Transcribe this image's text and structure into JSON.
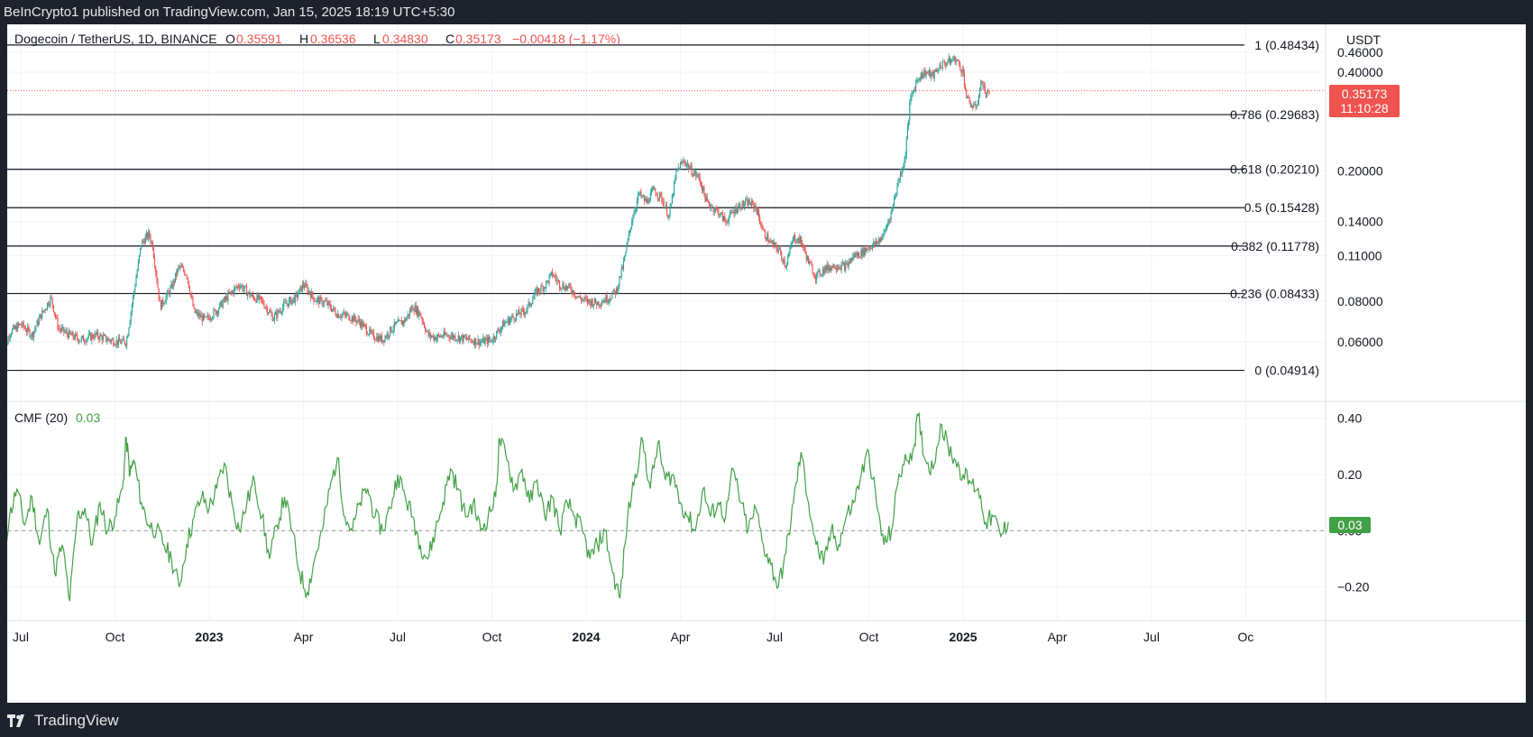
{
  "header": {
    "publish_line": "BeInCrypto1 published on TradingView.com, Jan 15, 2025 18:19 UTC+5:30"
  },
  "footer": {
    "brand": "TradingView"
  },
  "legend": {
    "symbol": "Dogecoin / TetherUS, 1D, BINANCE",
    "o_label": "O",
    "o_value": "0.35591",
    "h_label": "H",
    "h_value": "0.36536",
    "l_label": "L",
    "l_value": "0.34830",
    "c_label": "C",
    "c_value": "0.35173",
    "change": "−0.00418 (−1.17%)"
  },
  "currency": "USDT",
  "price_badge": {
    "price": "0.35173",
    "countdown": "11:10:28"
  },
  "cmf_legend": {
    "label": "CMF (20)",
    "value": "0.03"
  },
  "cmf_badge": "0.03",
  "colors": {
    "up": "#26a69a",
    "down": "#ef5350",
    "cmf": "#43a047",
    "price_line": "#ef5350",
    "frame": "#1e222d"
  },
  "chart_data": [
    {
      "type": "candlestick",
      "title": "Dogecoin / TetherUS, 1D, BINANCE",
      "scale": "log",
      "ylim": [
        0.0395,
        0.56
      ],
      "y_ticks": [
        {
          "v": 0.46,
          "label": "0.46000"
        },
        {
          "v": 0.06,
          "label": "0.06000"
        },
        {
          "v": 0.08,
          "label": "0.08000"
        },
        {
          "v": 0.11,
          "label": "0.11000"
        },
        {
          "v": 0.14,
          "label": "0.14000"
        },
        {
          "v": 0.2,
          "label": "0.20000"
        },
        {
          "v": 0.4,
          "label": "0.40000"
        }
      ],
      "x_ticks": [
        {
          "t": 2022.5,
          "label": "Jul"
        },
        {
          "t": 2022.75,
          "label": "Oct"
        },
        {
          "t": 2023.0,
          "label": "2023"
        },
        {
          "t": 2023.25,
          "label": "Apr"
        },
        {
          "t": 2023.5,
          "label": "Jul"
        },
        {
          "t": 2023.75,
          "label": "Oct"
        },
        {
          "t": 2024.0,
          "label": "2024"
        },
        {
          "t": 2024.25,
          "label": "Apr"
        },
        {
          "t": 2024.5,
          "label": "Jul"
        },
        {
          "t": 2024.75,
          "label": "Oct"
        },
        {
          "t": 2025.0,
          "label": "2025"
        },
        {
          "t": 2025.25,
          "label": "Apr"
        },
        {
          "t": 2025.5,
          "label": "Jul"
        },
        {
          "t": 2025.75,
          "label": "Oc"
        }
      ],
      "fib_levels": [
        {
          "v": 0.48434,
          "label": "1 (0.48434)"
        },
        {
          "v": 0.29683,
          "label": "0.786 (0.29683)"
        },
        {
          "v": 0.2021,
          "label": "0.618 (0.20210)"
        },
        {
          "v": 0.15428,
          "label": "0.5 (0.15428)"
        },
        {
          "v": 0.11778,
          "label": "0.382 (0.11778)"
        },
        {
          "v": 0.08433,
          "label": "0.236 (0.08433)"
        },
        {
          "v": 0.04914,
          "label": "0 (0.04914)"
        }
      ],
      "last_price": 0.35173,
      "price_path": [
        [
          2022.45,
          0.052
        ],
        [
          2022.47,
          0.064
        ],
        [
          2022.5,
          0.068
        ],
        [
          2022.53,
          0.063
        ],
        [
          2022.55,
          0.071
        ],
        [
          2022.58,
          0.082
        ],
        [
          2022.6,
          0.066
        ],
        [
          2022.63,
          0.063
        ],
        [
          2022.66,
          0.061
        ],
        [
          2022.7,
          0.063
        ],
        [
          2022.73,
          0.061
        ],
        [
          2022.76,
          0.06
        ],
        [
          2022.78,
          0.06
        ],
        [
          2022.8,
          0.085
        ],
        [
          2022.82,
          0.12
        ],
        [
          2022.84,
          0.128
        ],
        [
          2022.85,
          0.118
        ],
        [
          2022.87,
          0.077
        ],
        [
          2022.9,
          0.088
        ],
        [
          2022.92,
          0.102
        ],
        [
          2022.94,
          0.097
        ],
        [
          2022.96,
          0.074
        ],
        [
          2022.99,
          0.07
        ],
        [
          2023.02,
          0.075
        ],
        [
          2023.05,
          0.083
        ],
        [
          2023.08,
          0.09
        ],
        [
          2023.11,
          0.083
        ],
        [
          2023.14,
          0.08
        ],
        [
          2023.17,
          0.071
        ],
        [
          2023.2,
          0.078
        ],
        [
          2023.23,
          0.082
        ],
        [
          2023.25,
          0.09
        ],
        [
          2023.28,
          0.081
        ],
        [
          2023.31,
          0.079
        ],
        [
          2023.34,
          0.073
        ],
        [
          2023.37,
          0.072
        ],
        [
          2023.4,
          0.069
        ],
        [
          2023.43,
          0.063
        ],
        [
          2023.46,
          0.061
        ],
        [
          2023.49,
          0.067
        ],
        [
          2023.52,
          0.07
        ],
        [
          2023.54,
          0.077
        ],
        [
          2023.56,
          0.073
        ],
        [
          2023.58,
          0.063
        ],
        [
          2023.6,
          0.062
        ],
        [
          2023.63,
          0.063
        ],
        [
          2023.66,
          0.062
        ],
        [
          2023.69,
          0.061
        ],
        [
          2023.72,
          0.06
        ],
        [
          2023.75,
          0.061
        ],
        [
          2023.78,
          0.068
        ],
        [
          2023.81,
          0.072
        ],
        [
          2023.84,
          0.075
        ],
        [
          2023.87,
          0.086
        ],
        [
          2023.89,
          0.089
        ],
        [
          2023.91,
          0.097
        ],
        [
          2023.93,
          0.09
        ],
        [
          2023.96,
          0.087
        ],
        [
          2023.98,
          0.082
        ],
        [
          2024.0,
          0.08
        ],
        [
          2024.03,
          0.079
        ],
        [
          2024.06,
          0.082
        ],
        [
          2024.08,
          0.086
        ],
        [
          2024.1,
          0.105
        ],
        [
          2024.12,
          0.14
        ],
        [
          2024.14,
          0.17
        ],
        [
          2024.16,
          0.16
        ],
        [
          2024.18,
          0.175
        ],
        [
          2024.2,
          0.165
        ],
        [
          2024.22,
          0.145
        ],
        [
          2024.24,
          0.2
        ],
        [
          2024.26,
          0.215
        ],
        [
          2024.28,
          0.2
        ],
        [
          2024.3,
          0.19
        ],
        [
          2024.32,
          0.16
        ],
        [
          2024.35,
          0.15
        ],
        [
          2024.37,
          0.14
        ],
        [
          2024.4,
          0.155
        ],
        [
          2024.43,
          0.16
        ],
        [
          2024.45,
          0.155
        ],
        [
          2024.47,
          0.13
        ],
        [
          2024.49,
          0.12
        ],
        [
          2024.51,
          0.115
        ],
        [
          2024.53,
          0.103
        ],
        [
          2024.55,
          0.125
        ],
        [
          2024.57,
          0.122
        ],
        [
          2024.59,
          0.105
        ],
        [
          2024.61,
          0.095
        ],
        [
          2024.63,
          0.1
        ],
        [
          2024.66,
          0.103
        ],
        [
          2024.69,
          0.102
        ],
        [
          2024.71,
          0.11
        ],
        [
          2024.73,
          0.112
        ],
        [
          2024.75,
          0.117
        ],
        [
          2024.77,
          0.12
        ],
        [
          2024.79,
          0.128
        ],
        [
          2024.81,
          0.15
        ],
        [
          2024.83,
          0.19
        ],
        [
          2024.845,
          0.215
        ],
        [
          2024.86,
          0.33
        ],
        [
          2024.88,
          0.385
        ],
        [
          2024.9,
          0.4
        ],
        [
          2024.92,
          0.39
        ],
        [
          2024.94,
          0.42
        ],
        [
          2024.96,
          0.43
        ],
        [
          2024.98,
          0.44
        ],
        [
          2025.0,
          0.4
        ],
        [
          2025.01,
          0.33
        ],
        [
          2025.02,
          0.32
        ],
        [
          2025.03,
          0.31
        ],
        [
          2025.04,
          0.33
        ],
        [
          2025.05,
          0.38
        ],
        [
          2025.06,
          0.34
        ],
        [
          2025.07,
          0.35173
        ]
      ]
    },
    {
      "type": "line",
      "title": "CMF (20)",
      "ylim": [
        -0.32,
        0.46
      ],
      "y_ticks": [
        {
          "v": 0.4,
          "label": "0.40"
        },
        {
          "v": 0.2,
          "label": "0.20"
        },
        {
          "v": 0.0,
          "label": "0.00"
        },
        {
          "v": -0.2,
          "label": "−0.20"
        }
      ],
      "zero_line": 0.0,
      "series": [
        {
          "values": [
            [
              2022.45,
              -0.12
            ],
            [
              2022.47,
              0.05
            ],
            [
              2022.49,
              0.15
            ],
            [
              2022.51,
              0.02
            ],
            [
              2022.53,
              0.12
            ],
            [
              2022.55,
              -0.05
            ],
            [
              2022.57,
              0.08
            ],
            [
              2022.59,
              -0.15
            ],
            [
              2022.61,
              -0.05
            ],
            [
              2022.63,
              -0.25
            ],
            [
              2022.65,
              0.05
            ],
            [
              2022.67,
              0.08
            ],
            [
              2022.69,
              -0.05
            ],
            [
              2022.71,
              0.1
            ],
            [
              2022.73,
              0.0
            ],
            [
              2022.75,
              0.05
            ],
            [
              2022.77,
              0.15
            ],
            [
              2022.78,
              0.33
            ],
            [
              2022.79,
              0.2
            ],
            [
              2022.8,
              0.25
            ],
            [
              2022.82,
              0.1
            ],
            [
              2022.84,
              0.02
            ],
            [
              2022.86,
              0.0
            ],
            [
              2022.88,
              -0.05
            ],
            [
              2022.9,
              -0.1
            ],
            [
              2022.92,
              -0.2
            ],
            [
              2022.94,
              -0.05
            ],
            [
              2022.96,
              0.05
            ],
            [
              2022.98,
              0.12
            ],
            [
              2023.0,
              0.08
            ],
            [
              2023.02,
              0.15
            ],
            [
              2023.04,
              0.24
            ],
            [
              2023.06,
              0.1
            ],
            [
              2023.08,
              0.0
            ],
            [
              2023.1,
              0.1
            ],
            [
              2023.12,
              0.18
            ],
            [
              2023.14,
              0.05
            ],
            [
              2023.16,
              -0.1
            ],
            [
              2023.18,
              0.02
            ],
            [
              2023.2,
              0.12
            ],
            [
              2023.22,
              0.0
            ],
            [
              2023.24,
              -0.15
            ],
            [
              2023.26,
              -0.22
            ],
            [
              2023.28,
              -0.1
            ],
            [
              2023.3,
              0.0
            ],
            [
              2023.32,
              0.15
            ],
            [
              2023.34,
              0.26
            ],
            [
              2023.36,
              0.05
            ],
            [
              2023.38,
              0.0
            ],
            [
              2023.4,
              0.1
            ],
            [
              2023.42,
              0.15
            ],
            [
              2023.44,
              0.05
            ],
            [
              2023.46,
              0.0
            ],
            [
              2023.48,
              0.08
            ],
            [
              2023.5,
              0.2
            ],
            [
              2023.52,
              0.12
            ],
            [
              2023.54,
              0.05
            ],
            [
              2023.56,
              -0.05
            ],
            [
              2023.58,
              -0.1
            ],
            [
              2023.6,
              0.0
            ],
            [
              2023.62,
              0.1
            ],
            [
              2023.64,
              0.22
            ],
            [
              2023.66,
              0.15
            ],
            [
              2023.68,
              0.05
            ],
            [
              2023.7,
              0.1
            ],
            [
              2023.72,
              0.0
            ],
            [
              2023.74,
              0.05
            ],
            [
              2023.76,
              0.12
            ],
            [
              2023.77,
              0.33
            ],
            [
              2023.79,
              0.25
            ],
            [
              2023.81,
              0.15
            ],
            [
              2023.83,
              0.22
            ],
            [
              2023.85,
              0.1
            ],
            [
              2023.87,
              0.18
            ],
            [
              2023.89,
              0.05
            ],
            [
              2023.91,
              0.12
            ],
            [
              2023.93,
              0.0
            ],
            [
              2023.95,
              0.1
            ],
            [
              2023.97,
              0.05
            ],
            [
              2023.99,
              0.0
            ],
            [
              2024.01,
              -0.1
            ],
            [
              2024.03,
              -0.05
            ],
            [
              2024.05,
              0.0
            ],
            [
              2024.07,
              -0.15
            ],
            [
              2024.09,
              -0.24
            ],
            [
              2024.11,
              0.05
            ],
            [
              2024.13,
              0.2
            ],
            [
              2024.15,
              0.32
            ],
            [
              2024.17,
              0.15
            ],
            [
              2024.19,
              0.31
            ],
            [
              2024.21,
              0.18
            ],
            [
              2024.23,
              0.2
            ],
            [
              2024.25,
              0.1
            ],
            [
              2024.27,
              0.05
            ],
            [
              2024.29,
              0.0
            ],
            [
              2024.31,
              0.15
            ],
            [
              2024.33,
              0.05
            ],
            [
              2024.35,
              0.1
            ],
            [
              2024.37,
              0.05
            ],
            [
              2024.39,
              0.22
            ],
            [
              2024.41,
              0.1
            ],
            [
              2024.43,
              0.0
            ],
            [
              2024.45,
              0.08
            ],
            [
              2024.47,
              -0.05
            ],
            [
              2024.49,
              -0.12
            ],
            [
              2024.51,
              -0.2
            ],
            [
              2024.53,
              -0.08
            ],
            [
              2024.55,
              0.1
            ],
            [
              2024.57,
              0.28
            ],
            [
              2024.59,
              0.1
            ],
            [
              2024.61,
              -0.05
            ],
            [
              2024.63,
              -0.12
            ],
            [
              2024.65,
              0.0
            ],
            [
              2024.67,
              -0.05
            ],
            [
              2024.69,
              0.05
            ],
            [
              2024.71,
              0.1
            ],
            [
              2024.73,
              0.2
            ],
            [
              2024.75,
              0.28
            ],
            [
              2024.77,
              0.1
            ],
            [
              2024.79,
              -0.05
            ],
            [
              2024.81,
              0.0
            ],
            [
              2024.83,
              0.2
            ],
            [
              2024.85,
              0.25
            ],
            [
              2024.87,
              0.3
            ],
            [
              2024.88,
              0.41
            ],
            [
              2024.9,
              0.25
            ],
            [
              2024.92,
              0.22
            ],
            [
              2024.94,
              0.38
            ],
            [
              2024.96,
              0.3
            ],
            [
              2024.98,
              0.25
            ],
            [
              2025.0,
              0.2
            ],
            [
              2025.02,
              0.17
            ],
            [
              2025.04,
              0.15
            ],
            [
              2025.06,
              0.03
            ],
            [
              2025.08,
              0.05
            ],
            [
              2025.1,
              -0.02
            ],
            [
              2025.12,
              0.03
            ]
          ]
        }
      ]
    }
  ]
}
